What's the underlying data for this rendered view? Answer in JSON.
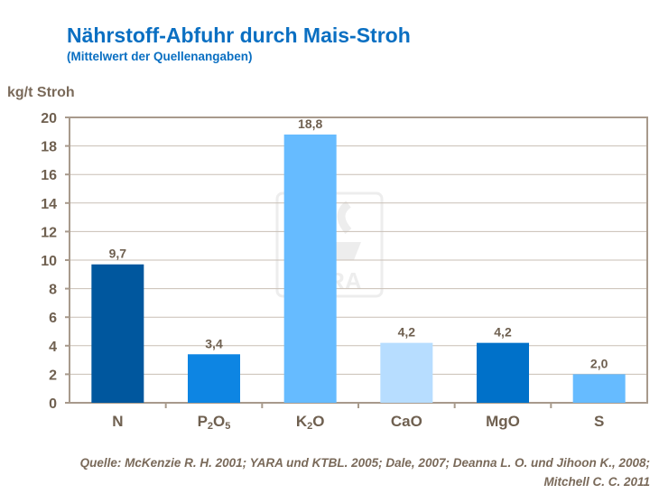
{
  "title": "Nährstoff-Abfuhr durch Mais-Stroh",
  "subtitle": "(Mittelwert der Quellenangaben)",
  "source": "Quelle: McKenzie R. H. 2001; YARA und KTBL. 2005; Dale, 2007; Deanna L. O. und Jihoon K.,  2008; Mitchell C. C. 2011",
  "watermark": "YARA",
  "chart_data": {
    "type": "bar",
    "ylabel": "kg/t Stroh",
    "ylim": [
      0,
      20
    ],
    "yticks": [
      0,
      2,
      4,
      6,
      8,
      10,
      12,
      14,
      16,
      18,
      20
    ],
    "grid": true,
    "categories": [
      {
        "base": "N",
        "sub": "",
        "tail": ""
      },
      {
        "base": "P",
        "sub": "2",
        "tail": "O",
        "sub2": "5"
      },
      {
        "base": "K",
        "sub": "2",
        "tail": "O"
      },
      {
        "base": "CaO",
        "sub": "",
        "tail": ""
      },
      {
        "base": "MgO",
        "sub": "",
        "tail": ""
      },
      {
        "base": "S",
        "sub": "",
        "tail": ""
      }
    ],
    "values": [
      9.7,
      3.4,
      18.8,
      4.2,
      4.2,
      2.0
    ],
    "data_labels": [
      "9,7",
      "3,4",
      "18,8",
      "4,2",
      "4,2",
      "2,0"
    ],
    "colors": [
      "#00579e",
      "#0d85e3",
      "#66bbff",
      "#b7ddff",
      "#0071c9",
      "#66bbff"
    ]
  }
}
